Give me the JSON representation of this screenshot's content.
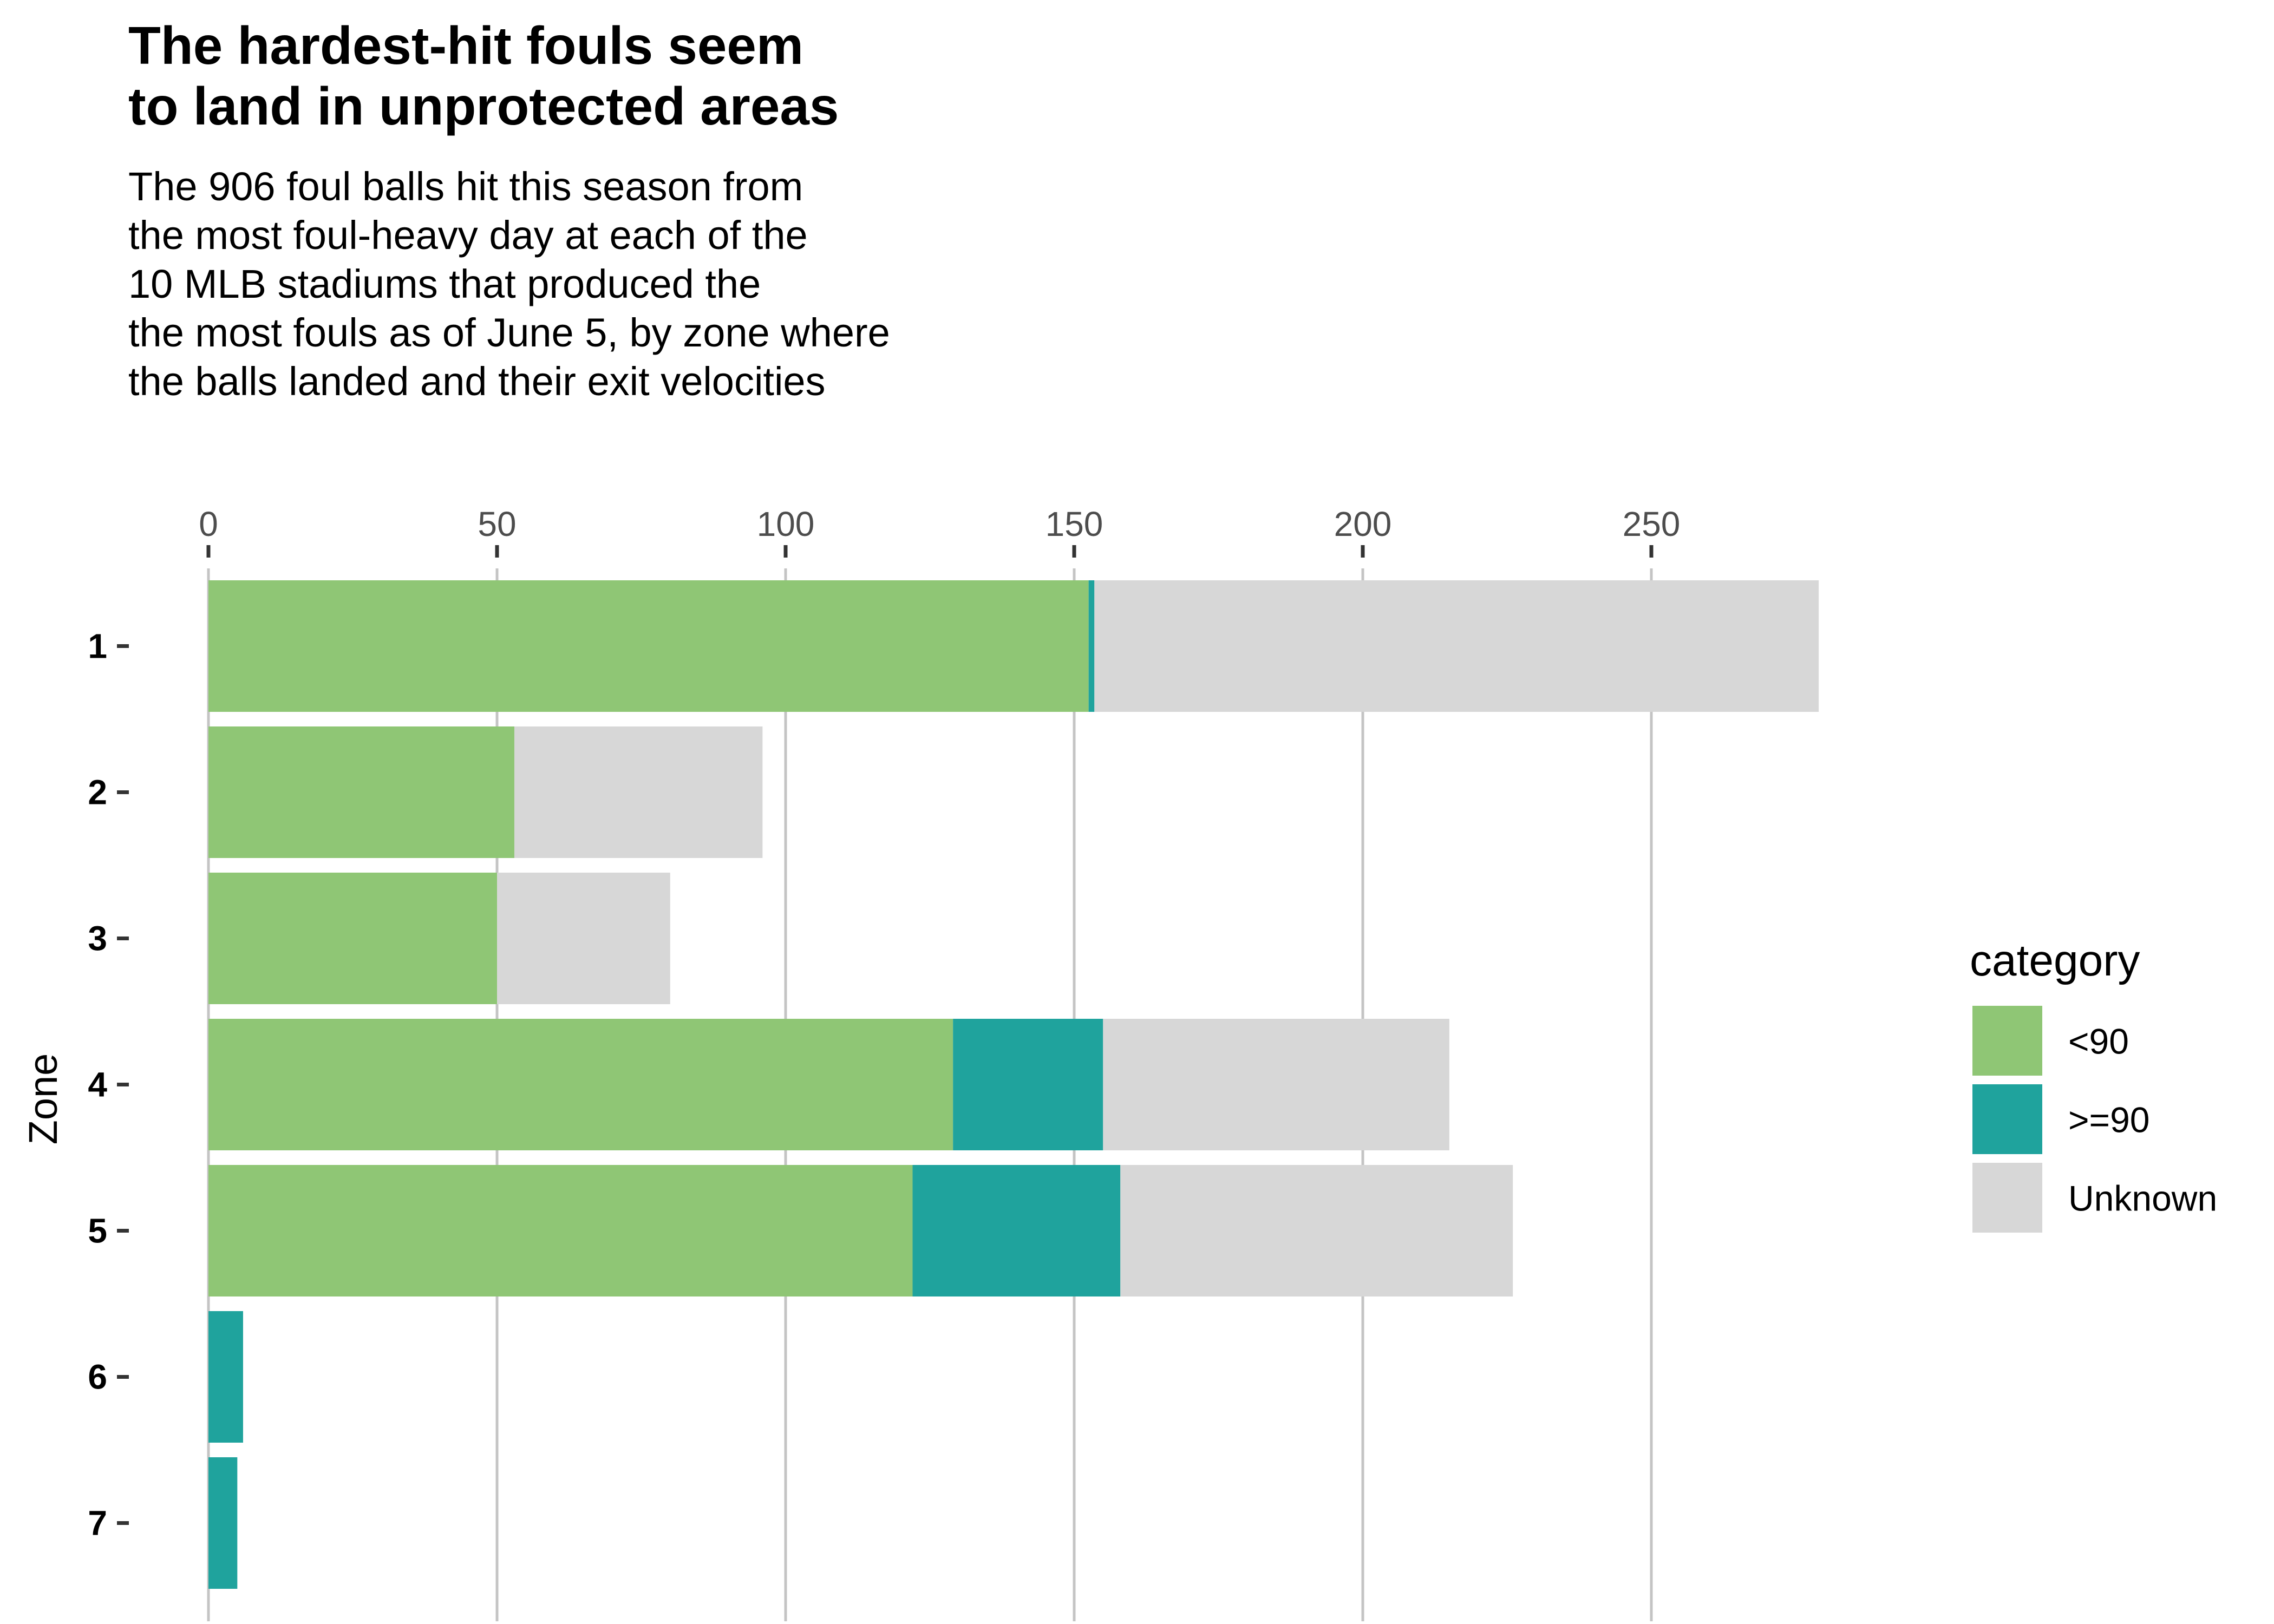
{
  "chart_data": {
    "type": "bar",
    "orientation": "horizontal",
    "stacked": true,
    "title": "The hardest-hit fouls seem\nto land in unprotected areas",
    "subtitle": "The 906 foul balls hit this season from\nthe most foul-heavy day at each of the\n10 MLB stadiums that produced the\nthe most fouls as of June 5, by zone where\nthe balls landed and their exit velocities",
    "xlabel": "",
    "ylabel": "Zone",
    "xlim": [
      0,
      280
    ],
    "x_ticks": [
      0,
      50,
      100,
      150,
      200,
      250
    ],
    "x_axis_position": "top",
    "grid": "vertical major",
    "categories": [
      "1",
      "2",
      "3",
      "4",
      "5",
      "6",
      "7"
    ],
    "series": [
      {
        "name": "<90",
        "color": "#8fc675",
        "values": [
          152.5,
          53,
          50,
          129,
          122,
          0,
          0
        ]
      },
      {
        "name": ">=90",
        "color": "#1fa39d",
        "values": [
          1,
          0,
          0,
          26,
          36,
          6,
          5
        ]
      },
      {
        "name": "Unknown",
        "color": "#d7d7d7",
        "values": [
          125.5,
          43,
          30,
          60,
          68,
          0,
          0
        ]
      }
    ],
    "legend": {
      "title": "category",
      "position": "right"
    }
  }
}
